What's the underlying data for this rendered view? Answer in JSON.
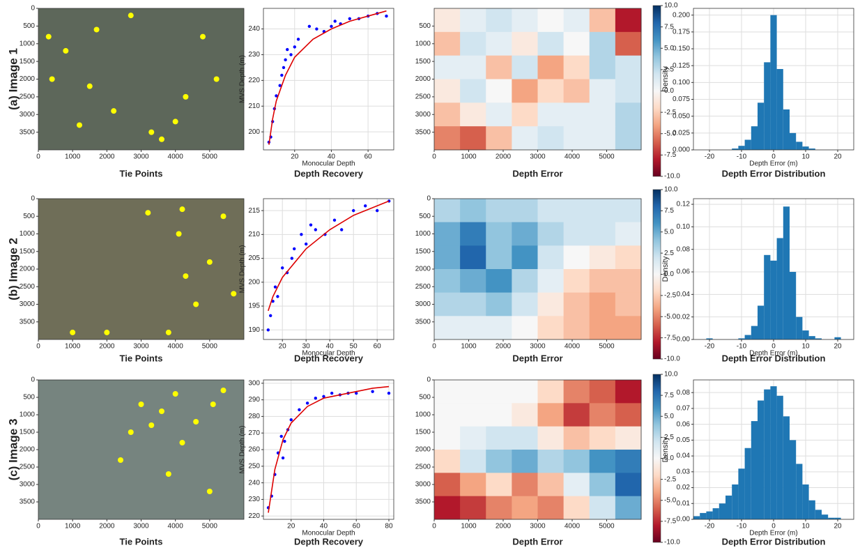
{
  "row_labels": [
    "(a) Image 1",
    "(b) Image 2",
    "(c) Image 3"
  ],
  "chart_data": [
    {
      "type": "image-points",
      "title": "Tie Points",
      "background": "#5d675a",
      "color": "#ffff00",
      "xlim": [
        0,
        6000
      ],
      "ylim": [
        4000,
        0
      ],
      "xticks": [
        0,
        1000,
        2000,
        3000,
        4000,
        5000
      ],
      "yticks": [
        0,
        500,
        1000,
        1500,
        2000,
        2500,
        3000,
        3500
      ],
      "points_x": [
        300,
        800,
        1200,
        1700,
        2200,
        2700,
        3300,
        3600,
        4000,
        4300,
        4800,
        5200,
        1500,
        400
      ],
      "points_y": [
        800,
        1200,
        3300,
        600,
        2900,
        200,
        3500,
        3700,
        3200,
        2500,
        800,
        2000,
        2200,
        2000
      ]
    },
    {
      "type": "scatter",
      "title": "Depth Recovery",
      "xlabel": "Monocular Depth",
      "ylabel": "MVS Depth (m)",
      "color": "#0000ff",
      "fit_color": "#dd0000",
      "grid": true,
      "xlim": [
        3,
        74
      ],
      "ylim": [
        193,
        248
      ],
      "xticks": [
        20,
        40,
        60
      ],
      "yticks": [
        200,
        210,
        220,
        230,
        240
      ],
      "x": [
        6,
        7,
        8,
        9,
        10,
        12,
        13,
        14,
        15,
        16,
        18,
        20,
        22,
        28,
        32,
        36,
        40,
        42,
        45,
        50,
        55,
        60,
        65,
        70
      ],
      "y": [
        196,
        198,
        204,
        209,
        214,
        218,
        222,
        225,
        228,
        232,
        230,
        233,
        236,
        241,
        240,
        239,
        241,
        243,
        242,
        244,
        244,
        245,
        246,
        245
      ],
      "fit_x": [
        6,
        8,
        10,
        15,
        20,
        30,
        40,
        50,
        60,
        70
      ],
      "fit_y": [
        195,
        205,
        212,
        222,
        229,
        236,
        240,
        243,
        245,
        247
      ]
    },
    {
      "type": "heatmap",
      "title": "Depth Error",
      "xlim": [
        0,
        6000
      ],
      "ylim": [
        4000,
        0
      ],
      "xticks": [
        0,
        1000,
        2000,
        3000,
        4000,
        5000
      ],
      "yticks": [
        500,
        1000,
        1500,
        2000,
        2500,
        3000,
        3500
      ],
      "clim": [
        -10,
        10
      ],
      "colormap": [
        "#67001f",
        "#b2182b",
        "#d6604d",
        "#f4a582",
        "#fddbc7",
        "#f7f7f7",
        "#d1e5f0",
        "#92c5de",
        "#4393c3",
        "#2166ac",
        "#053061"
      ],
      "cticks": [
        {
          "value": 10,
          "label": "10.0"
        },
        7.5,
        {
          "value": 5,
          "label": "5.0"
        },
        2.5,
        {
          "value": 0,
          "label": "0.0"
        },
        -2.5,
        {
          "value": -5,
          "label": "-5.0"
        },
        -7.5,
        {
          "value": -10,
          "label": "-10.0"
        }
      ],
      "z": [
        [
          -1,
          1,
          2,
          1,
          0,
          1,
          -3,
          -8
        ],
        [
          -3,
          2,
          1,
          -1,
          2,
          0,
          3,
          -6
        ],
        [
          1,
          1,
          -3,
          2,
          -4,
          -2,
          3,
          2
        ],
        [
          -1,
          2,
          0,
          -4,
          -2,
          -3,
          1,
          2
        ],
        [
          -3,
          -1,
          1,
          -2,
          1,
          1,
          1,
          3
        ],
        [
          -5,
          -6,
          -3,
          1,
          2,
          1,
          1,
          3
        ]
      ]
    },
    {
      "type": "histogram",
      "title": "Depth Error Distribution",
      "xlabel": "Depth Error (m)",
      "ylabel": "Density",
      "color": "#1f77b4",
      "grid": true,
      "xlim": [
        -25,
        25
      ],
      "ylim": [
        0,
        0.21
      ],
      "xticks": [
        -20,
        -10,
        0,
        10,
        20
      ],
      "yticks": [
        {
          "value": 0,
          "label": "0.000"
        },
        0.025,
        {
          "value": 0.05,
          "label": "0.050"
        },
        0.075,
        {
          "value": 0.1,
          "label": "0.100"
        },
        0.125,
        {
          "value": 0.15,
          "label": "0.150"
        },
        0.175,
        {
          "value": 0.2,
          "label": "0.200"
        }
      ],
      "bins": [
        -25,
        -23,
        -21,
        -19,
        -17,
        -15,
        -13,
        -11,
        -9,
        -7,
        -5,
        -3,
        -1,
        1,
        3,
        5,
        7,
        9,
        11,
        13,
        15,
        17,
        19,
        21,
        23,
        25
      ],
      "counts": [
        0,
        0,
        0,
        0,
        0,
        0,
        0.002,
        0.006,
        0.015,
        0.035,
        0.07,
        0.13,
        0.2,
        0.12,
        0.06,
        0.025,
        0.012,
        0.005,
        0.002,
        0,
        0,
        0,
        0,
        0,
        0
      ]
    },
    {
      "type": "image-points",
      "title": "Tie Points",
      "background": "#6f6e58",
      "color": "#ffff00",
      "xlim": [
        0,
        6000
      ],
      "ylim": [
        4000,
        0
      ],
      "xticks": [
        0,
        1000,
        2000,
        3000,
        4000,
        5000
      ],
      "yticks": [
        0,
        500,
        1000,
        1500,
        2000,
        2500,
        3000,
        3500
      ],
      "points_x": [
        1000,
        2000,
        3200,
        3800,
        4100,
        4300,
        4600,
        5000,
        5400,
        5700,
        4200
      ],
      "points_y": [
        3800,
        3800,
        400,
        3800,
        1000,
        2200,
        3000,
        1800,
        500,
        2700,
        300
      ]
    },
    {
      "type": "scatter",
      "title": "Depth Recovery",
      "xlabel": "Monocular Depth",
      "ylabel": "MVS Depth (m)",
      "color": "#0000ff",
      "fit_color": "#dd0000",
      "grid": true,
      "xlim": [
        12,
        67
      ],
      "ylim": [
        188,
        217.5
      ],
      "xticks": [
        20,
        30,
        40,
        50,
        60
      ],
      "yticks": [
        190,
        195,
        200,
        205,
        210,
        215
      ],
      "x": [
        14,
        15,
        16,
        17,
        18,
        20,
        22,
        24,
        25,
        28,
        30,
        32,
        34,
        38,
        42,
        45,
        50,
        55,
        60,
        65
      ],
      "y": [
        190,
        193,
        196,
        199,
        197,
        203,
        202,
        205,
        207,
        210,
        208,
        212,
        211,
        210,
        213,
        211,
        215,
        216,
        215,
        217
      ],
      "fit_x": [
        14,
        16,
        20,
        25,
        30,
        40,
        50,
        60,
        65
      ],
      "fit_y": [
        194,
        197,
        201,
        204,
        207,
        211,
        214,
        216,
        217
      ]
    },
    {
      "type": "heatmap",
      "title": "Depth Error",
      "xlim": [
        0,
        6000
      ],
      "ylim": [
        4000,
        0
      ],
      "xticks": [
        0,
        1000,
        2000,
        3000,
        4000,
        5000
      ],
      "yticks": [
        0,
        500,
        1000,
        1500,
        2000,
        2500,
        3000,
        3500
      ],
      "clim": [
        -10,
        10
      ],
      "colormap": [
        "#67001f",
        "#b2182b",
        "#d6604d",
        "#f4a582",
        "#fddbc7",
        "#f7f7f7",
        "#d1e5f0",
        "#92c5de",
        "#4393c3",
        "#2166ac",
        "#053061"
      ],
      "cticks": [
        {
          "value": 10,
          "label": "10.0"
        },
        7.5,
        {
          "value": 5,
          "label": "5.0"
        },
        2.5,
        {
          "value": 0,
          "label": "0.0"
        },
        -2.5,
        {
          "value": -5,
          "label": "-5.0"
        },
        -7.5,
        {
          "value": -10,
          "label": "-10.0"
        }
      ],
      "z": [
        [
          3,
          4,
          3,
          3,
          2,
          2,
          2,
          2
        ],
        [
          5,
          7,
          4,
          5,
          3,
          2,
          2,
          1
        ],
        [
          5,
          8,
          4,
          6,
          2,
          0,
          -1,
          -2
        ],
        [
          4,
          5,
          6,
          3,
          1,
          -2,
          -3,
          -3
        ],
        [
          3,
          3,
          4,
          2,
          -1,
          -3,
          -4,
          -3
        ],
        [
          1,
          1,
          1,
          0,
          -2,
          -3,
          -4,
          -4
        ]
      ]
    },
    {
      "type": "histogram",
      "title": "Depth Error Distribution",
      "xlabel": "Depth Error (m)",
      "ylabel": "Density",
      "color": "#1f77b4",
      "grid": true,
      "xlim": [
        -25,
        25
      ],
      "ylim": [
        0,
        0.125
      ],
      "xticks": [
        -20,
        -10,
        0,
        10,
        20
      ],
      "yticks": [
        {
          "value": 0,
          "label": "0.00"
        },
        0.02,
        0.04,
        0.06,
        0.08,
        {
          "value": 0.1,
          "label": "0.10"
        },
        0.12
      ],
      "bins": [
        -25,
        -23,
        -21,
        -19,
        -17,
        -15,
        -13,
        -11,
        -9,
        -7,
        -5,
        -3,
        -1,
        1,
        3,
        5,
        7,
        9,
        11,
        13,
        15,
        17,
        19,
        21,
        23,
        25
      ],
      "counts": [
        0,
        0,
        0.001,
        0,
        0,
        0,
        0,
        0.001,
        0.004,
        0.012,
        0.03,
        0.075,
        0.07,
        0.09,
        0.118,
        0.06,
        0.02,
        0.008,
        0.003,
        0.001,
        0,
        0,
        0.002,
        0,
        0
      ]
    },
    {
      "type": "image-points",
      "title": "Tie Points",
      "background": "#76847f",
      "color": "#ffff00",
      "xlim": [
        0,
        6000
      ],
      "ylim": [
        4000,
        0
      ],
      "xticks": [
        0,
        1000,
        2000,
        3000,
        4000,
        5000
      ],
      "yticks": [
        0,
        500,
        1000,
        1500,
        2000,
        2500,
        3000,
        3500
      ],
      "points_x": [
        2700,
        3000,
        3300,
        3600,
        4000,
        4200,
        4600,
        5100,
        5400,
        5000,
        3800,
        2400
      ],
      "points_y": [
        1500,
        700,
        1300,
        900,
        400,
        1800,
        1200,
        700,
        300,
        3200,
        2700,
        2300
      ]
    },
    {
      "type": "scatter",
      "title": "Depth Recovery",
      "xlabel": "Monocular Depth",
      "ylabel": "MVS Depth (m)",
      "color": "#0000ff",
      "fit_color": "#dd0000",
      "grid": true,
      "xlim": [
        3,
        83
      ],
      "ylim": [
        218,
        302
      ],
      "xticks": [
        20,
        40,
        60,
        80
      ],
      "yticks": [
        220,
        230,
        240,
        250,
        260,
        270,
        280,
        290,
        300
      ],
      "x": [
        6,
        8,
        10,
        12,
        14,
        15,
        16,
        18,
        20,
        25,
        30,
        35,
        40,
        45,
        50,
        55,
        60,
        70,
        80
      ],
      "y": [
        225,
        232,
        245,
        258,
        268,
        255,
        265,
        272,
        278,
        284,
        288,
        291,
        292,
        294,
        293,
        294,
        294,
        295,
        294
      ],
      "fit_x": [
        6,
        8,
        10,
        15,
        20,
        30,
        40,
        50,
        60,
        70,
        80
      ],
      "fit_y": [
        222,
        235,
        248,
        266,
        276,
        286,
        291,
        293,
        295,
        297,
        298
      ]
    },
    {
      "type": "heatmap",
      "title": "Depth Error",
      "xlim": [
        0,
        6000
      ],
      "ylim": [
        4000,
        0
      ],
      "xticks": [
        0,
        1000,
        2000,
        3000,
        4000,
        5000
      ],
      "yticks": [
        0,
        500,
        1000,
        1500,
        2000,
        2500,
        3000,
        3500
      ],
      "clim": [
        -10,
        10
      ],
      "colormap": [
        "#67001f",
        "#b2182b",
        "#d6604d",
        "#f4a582",
        "#fddbc7",
        "#f7f7f7",
        "#d1e5f0",
        "#92c5de",
        "#4393c3",
        "#2166ac",
        "#053061"
      ],
      "cticks": [
        {
          "value": 10,
          "label": "10.0"
        },
        7.5,
        {
          "value": 5,
          "label": "5.0"
        },
        2.5,
        {
          "value": 0,
          "label": "0.0"
        },
        -2.5,
        {
          "value": -5,
          "label": "-5.0"
        },
        -7.5,
        {
          "value": -10,
          "label": "-10.0"
        }
      ],
      "z": [
        [
          0,
          0,
          0,
          0,
          -2,
          -5,
          -6,
          -8
        ],
        [
          0,
          0,
          0,
          -1,
          -4,
          -7,
          -5,
          -6
        ],
        [
          0,
          1,
          2,
          2,
          -1,
          -3,
          -2,
          -1
        ],
        [
          -2,
          2,
          4,
          5,
          3,
          4,
          6,
          7
        ],
        [
          -6,
          -4,
          -2,
          -5,
          -3,
          1,
          4,
          8
        ],
        [
          -8,
          -7,
          -5,
          -4,
          -5,
          -2,
          2,
          5
        ]
      ]
    },
    {
      "type": "histogram",
      "title": "Depth Error Distribution",
      "xlabel": "Depth Error (m)",
      "ylabel": "Density",
      "color": "#1f77b4",
      "grid": true,
      "xlim": [
        -25,
        25
      ],
      "ylim": [
        0,
        0.088
      ],
      "xticks": [
        -20,
        -10,
        0,
        10,
        20
      ],
      "yticks": [
        {
          "value": 0,
          "label": "0.00"
        },
        0.01,
        0.02,
        0.03,
        0.04,
        0.05,
        0.06,
        0.07,
        0.08
      ],
      "bins": [
        -25,
        -23,
        -21,
        -19,
        -17,
        -15,
        -13,
        -11,
        -9,
        -7,
        -5,
        -3,
        -1,
        1,
        3,
        5,
        7,
        9,
        11,
        13,
        15,
        17,
        19,
        21,
        23,
        25
      ],
      "counts": [
        0.002,
        0.004,
        0.005,
        0.007,
        0.01,
        0.015,
        0.022,
        0.032,
        0.045,
        0.062,
        0.075,
        0.082,
        0.084,
        0.078,
        0.065,
        0.05,
        0.035,
        0.022,
        0.012,
        0.006,
        0.003,
        0.001,
        0.001,
        0,
        0
      ]
    }
  ]
}
